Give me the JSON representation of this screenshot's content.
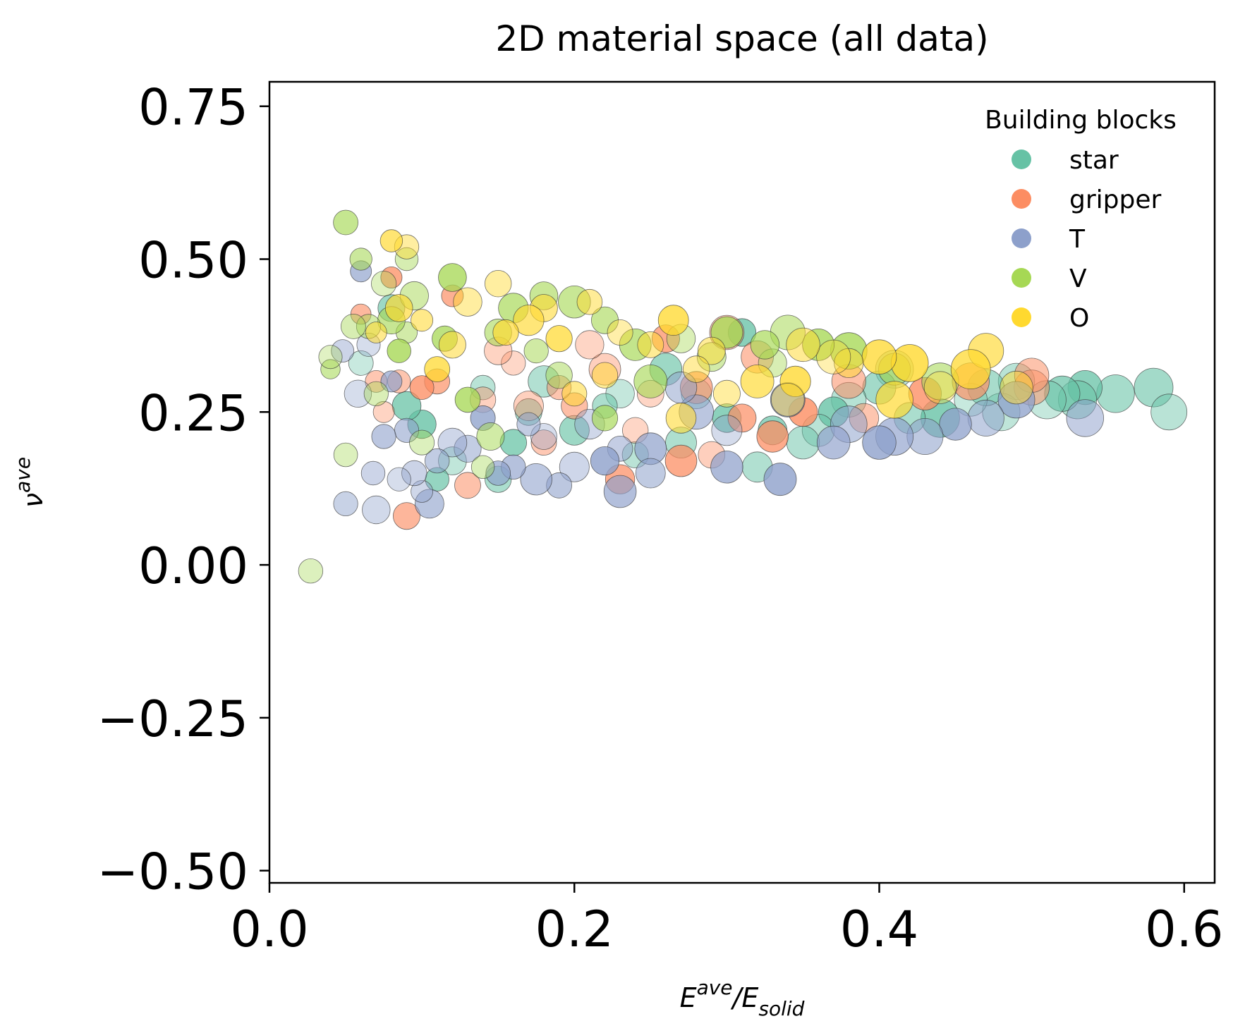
{
  "chart_data": {
    "type": "scatter",
    "title": "2D material space (all data)",
    "xlabel": {
      "base": "E",
      "sup": "ave",
      "mid": "/E",
      "sub": "solid"
    },
    "ylabel": {
      "base": "ν",
      "sup": "ave"
    },
    "xlim": [
      0.0,
      0.62
    ],
    "ylim": [
      -0.52,
      0.79
    ],
    "xticks": [
      0.0,
      0.2,
      0.4,
      0.6
    ],
    "xtick_labels": [
      "0.0",
      "0.2",
      "0.4",
      "0.6"
    ],
    "yticks": [
      -0.5,
      -0.25,
      0.0,
      0.25,
      0.5,
      0.75
    ],
    "ytick_labels": [
      "−0.50",
      "−0.25",
      "0.00",
      "0.25",
      "0.50",
      "0.75"
    ],
    "grid": false,
    "legend": {
      "title": "Building blocks",
      "placement": "top-right",
      "entries": [
        {
          "name": "star",
          "color": "#66c2a5"
        },
        {
          "name": "gripper",
          "color": "#fc8d62"
        },
        {
          "name": "T",
          "color": "#8da0cb"
        },
        {
          "name": "V",
          "color": "#a6d854"
        },
        {
          "name": "O",
          "color": "#ffd92f"
        }
      ]
    },
    "series": [
      {
        "name": "star",
        "points": [
          [
            0.58,
            0.29
          ],
          [
            0.59,
            0.25
          ],
          [
            0.555,
            0.28
          ],
          [
            0.535,
            0.29
          ],
          [
            0.53,
            0.27
          ],
          [
            0.52,
            0.28
          ],
          [
            0.51,
            0.27
          ],
          [
            0.49,
            0.3
          ],
          [
            0.48,
            0.25
          ],
          [
            0.47,
            0.29
          ],
          [
            0.46,
            0.27
          ],
          [
            0.44,
            0.24
          ],
          [
            0.42,
            0.24
          ],
          [
            0.41,
            0.32
          ],
          [
            0.4,
            0.29
          ],
          [
            0.38,
            0.27
          ],
          [
            0.37,
            0.25
          ],
          [
            0.36,
            0.22
          ],
          [
            0.35,
            0.2
          ],
          [
            0.33,
            0.22
          ],
          [
            0.32,
            0.16
          ],
          [
            0.31,
            0.38
          ],
          [
            0.3,
            0.24
          ],
          [
            0.28,
            0.28
          ],
          [
            0.27,
            0.2
          ],
          [
            0.26,
            0.32
          ],
          [
            0.24,
            0.18
          ],
          [
            0.23,
            0.28
          ],
          [
            0.22,
            0.26
          ],
          [
            0.2,
            0.22
          ],
          [
            0.18,
            0.3
          ],
          [
            0.17,
            0.25
          ],
          [
            0.16,
            0.2
          ],
          [
            0.15,
            0.14
          ],
          [
            0.14,
            0.29
          ],
          [
            0.12,
            0.17
          ],
          [
            0.11,
            0.14
          ],
          [
            0.1,
            0.23
          ],
          [
            0.09,
            0.26
          ],
          [
            0.08,
            0.42
          ],
          [
            0.06,
            0.33
          ]
        ]
      },
      {
        "name": "gripper",
        "points": [
          [
            0.5,
            0.29
          ],
          [
            0.5,
            0.31
          ],
          [
            0.46,
            0.3
          ],
          [
            0.43,
            0.28
          ],
          [
            0.39,
            0.24
          ],
          [
            0.38,
            0.3
          ],
          [
            0.35,
            0.25
          ],
          [
            0.33,
            0.21
          ],
          [
            0.32,
            0.34
          ],
          [
            0.31,
            0.24
          ],
          [
            0.3,
            0.38
          ],
          [
            0.29,
            0.18
          ],
          [
            0.28,
            0.29
          ],
          [
            0.27,
            0.17
          ],
          [
            0.26,
            0.37
          ],
          [
            0.25,
            0.28
          ],
          [
            0.24,
            0.22
          ],
          [
            0.23,
            0.14
          ],
          [
            0.22,
            0.32
          ],
          [
            0.21,
            0.36
          ],
          [
            0.2,
            0.26
          ],
          [
            0.19,
            0.29
          ],
          [
            0.18,
            0.2
          ],
          [
            0.17,
            0.26
          ],
          [
            0.16,
            0.33
          ],
          [
            0.15,
            0.35
          ],
          [
            0.14,
            0.27
          ],
          [
            0.13,
            0.13
          ],
          [
            0.12,
            0.44
          ],
          [
            0.11,
            0.3
          ],
          [
            0.1,
            0.29
          ],
          [
            0.09,
            0.08
          ],
          [
            0.085,
            0.3
          ],
          [
            0.08,
            0.47
          ],
          [
            0.075,
            0.25
          ],
          [
            0.07,
            0.3
          ],
          [
            0.06,
            0.41
          ]
        ]
      },
      {
        "name": "T",
        "points": [
          [
            0.535,
            0.24
          ],
          [
            0.49,
            0.27
          ],
          [
            0.47,
            0.24
          ],
          [
            0.45,
            0.23
          ],
          [
            0.43,
            0.21
          ],
          [
            0.41,
            0.21
          ],
          [
            0.4,
            0.2
          ],
          [
            0.38,
            0.23
          ],
          [
            0.37,
            0.2
          ],
          [
            0.34,
            0.27
          ],
          [
            0.335,
            0.14
          ],
          [
            0.3,
            0.16
          ],
          [
            0.3,
            0.22
          ],
          [
            0.28,
            0.25
          ],
          [
            0.27,
            0.29
          ],
          [
            0.25,
            0.19
          ],
          [
            0.25,
            0.15
          ],
          [
            0.23,
            0.12
          ],
          [
            0.23,
            0.19
          ],
          [
            0.22,
            0.17
          ],
          [
            0.21,
            0.23
          ],
          [
            0.2,
            0.16
          ],
          [
            0.19,
            0.13
          ],
          [
            0.18,
            0.21
          ],
          [
            0.175,
            0.14
          ],
          [
            0.17,
            0.23
          ],
          [
            0.16,
            0.16
          ],
          [
            0.15,
            0.15
          ],
          [
            0.14,
            0.24
          ],
          [
            0.13,
            0.19
          ],
          [
            0.12,
            0.2
          ],
          [
            0.11,
            0.17
          ],
          [
            0.105,
            0.1
          ],
          [
            0.1,
            0.12
          ],
          [
            0.095,
            0.15
          ],
          [
            0.09,
            0.22
          ],
          [
            0.085,
            0.14
          ],
          [
            0.08,
            0.3
          ],
          [
            0.075,
            0.21
          ],
          [
            0.07,
            0.09
          ],
          [
            0.068,
            0.15
          ],
          [
            0.065,
            0.36
          ],
          [
            0.06,
            0.48
          ],
          [
            0.058,
            0.28
          ],
          [
            0.05,
            0.1
          ],
          [
            0.048,
            0.35
          ]
        ]
      },
      {
        "name": "V",
        "points": [
          [
            0.44,
            0.3
          ],
          [
            0.41,
            0.32
          ],
          [
            0.38,
            0.35
          ],
          [
            0.36,
            0.36
          ],
          [
            0.34,
            0.38
          ],
          [
            0.33,
            0.33
          ],
          [
            0.325,
            0.36
          ],
          [
            0.3,
            0.38
          ],
          [
            0.29,
            0.34
          ],
          [
            0.27,
            0.37
          ],
          [
            0.25,
            0.3
          ],
          [
            0.24,
            0.36
          ],
          [
            0.22,
            0.4
          ],
          [
            0.22,
            0.24
          ],
          [
            0.2,
            0.43
          ],
          [
            0.19,
            0.31
          ],
          [
            0.18,
            0.44
          ],
          [
            0.175,
            0.35
          ],
          [
            0.16,
            0.42
          ],
          [
            0.15,
            0.38
          ],
          [
            0.145,
            0.21
          ],
          [
            0.14,
            0.16
          ],
          [
            0.13,
            0.27
          ],
          [
            0.12,
            0.47
          ],
          [
            0.115,
            0.37
          ],
          [
            0.1,
            0.2
          ],
          [
            0.095,
            0.44
          ],
          [
            0.09,
            0.5
          ],
          [
            0.09,
            0.38
          ],
          [
            0.085,
            0.35
          ],
          [
            0.08,
            0.4
          ],
          [
            0.075,
            0.46
          ],
          [
            0.07,
            0.28
          ],
          [
            0.065,
            0.39
          ],
          [
            0.06,
            0.5
          ],
          [
            0.055,
            0.39
          ],
          [
            0.05,
            0.56
          ],
          [
            0.05,
            0.18
          ],
          [
            0.04,
            0.32
          ],
          [
            0.04,
            0.34
          ],
          [
            0.027,
            -0.01
          ]
        ]
      },
      {
        "name": "O",
        "points": [
          [
            0.49,
            0.29
          ],
          [
            0.47,
            0.35
          ],
          [
            0.46,
            0.32
          ],
          [
            0.44,
            0.29
          ],
          [
            0.42,
            0.33
          ],
          [
            0.41,
            0.27
          ],
          [
            0.4,
            0.34
          ],
          [
            0.38,
            0.33
          ],
          [
            0.37,
            0.34
          ],
          [
            0.35,
            0.36
          ],
          [
            0.345,
            0.3
          ],
          [
            0.34,
            0.27
          ],
          [
            0.32,
            0.3
          ],
          [
            0.3,
            0.28
          ],
          [
            0.29,
            0.35
          ],
          [
            0.28,
            0.32
          ],
          [
            0.27,
            0.24
          ],
          [
            0.265,
            0.4
          ],
          [
            0.25,
            0.36
          ],
          [
            0.23,
            0.38
          ],
          [
            0.22,
            0.31
          ],
          [
            0.21,
            0.43
          ],
          [
            0.2,
            0.28
          ],
          [
            0.19,
            0.37
          ],
          [
            0.18,
            0.42
          ],
          [
            0.17,
            0.4
          ],
          [
            0.155,
            0.38
          ],
          [
            0.15,
            0.46
          ],
          [
            0.13,
            0.43
          ],
          [
            0.12,
            0.36
          ],
          [
            0.11,
            0.32
          ],
          [
            0.1,
            0.4
          ],
          [
            0.09,
            0.52
          ],
          [
            0.085,
            0.42
          ],
          [
            0.08,
            0.53
          ],
          [
            0.07,
            0.38
          ]
        ]
      }
    ]
  }
}
